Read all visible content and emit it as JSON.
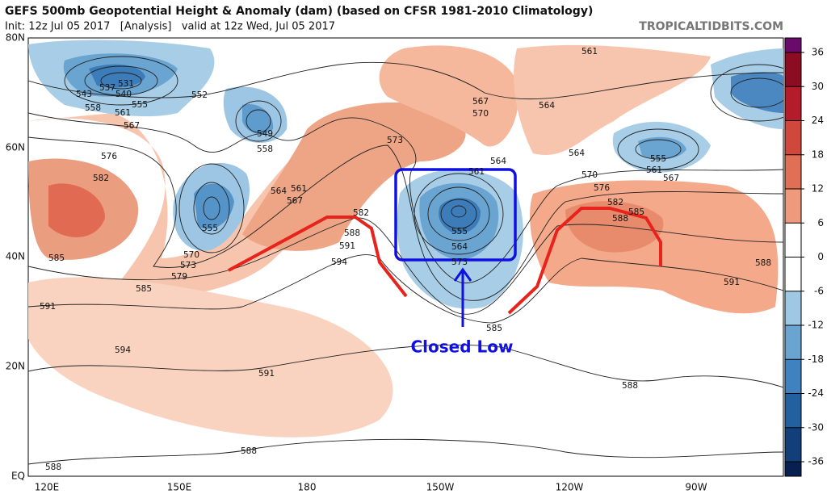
{
  "header": {
    "title": "GEFS 500mb Geopotential Height & Anomaly (dam) (based on CFSR 1981-2010 Climatology)",
    "subtitle": "Init: 12z Jul 05 2017   [Analysis]   valid at 12z Wed, Jul 05 2017",
    "source": "TROPICALTIDBITS.COM"
  },
  "map": {
    "lat_labels": [
      "80N",
      "60N",
      "40N",
      "20N",
      "EQ"
    ],
    "lon_labels": [
      "120E",
      "150E",
      "180",
      "150W",
      "120W",
      "90W"
    ],
    "contour_labels": [
      "531",
      "537",
      "543",
      "540",
      "558",
      "561",
      "555",
      "552",
      "567",
      "576",
      "582",
      "585",
      "591",
      "594",
      "549",
      "558",
      "555",
      "570",
      "573",
      "579",
      "585",
      "564",
      "561",
      "567",
      "573",
      "582",
      "588",
      "591",
      "594",
      "567",
      "570",
      "564",
      "561",
      "564",
      "561",
      "564",
      "570",
      "576",
      "582",
      "588",
      "585",
      "555",
      "564",
      "573",
      "555",
      "561",
      "567",
      "588",
      "591",
      "585",
      "591",
      "588",
      "588",
      "588"
    ],
    "annotation": "Closed Low"
  },
  "colorbar": {
    "ticks": [
      36,
      30,
      24,
      18,
      12,
      6,
      0,
      -6,
      -12,
      -18,
      -24,
      -30,
      -36
    ]
  }
}
